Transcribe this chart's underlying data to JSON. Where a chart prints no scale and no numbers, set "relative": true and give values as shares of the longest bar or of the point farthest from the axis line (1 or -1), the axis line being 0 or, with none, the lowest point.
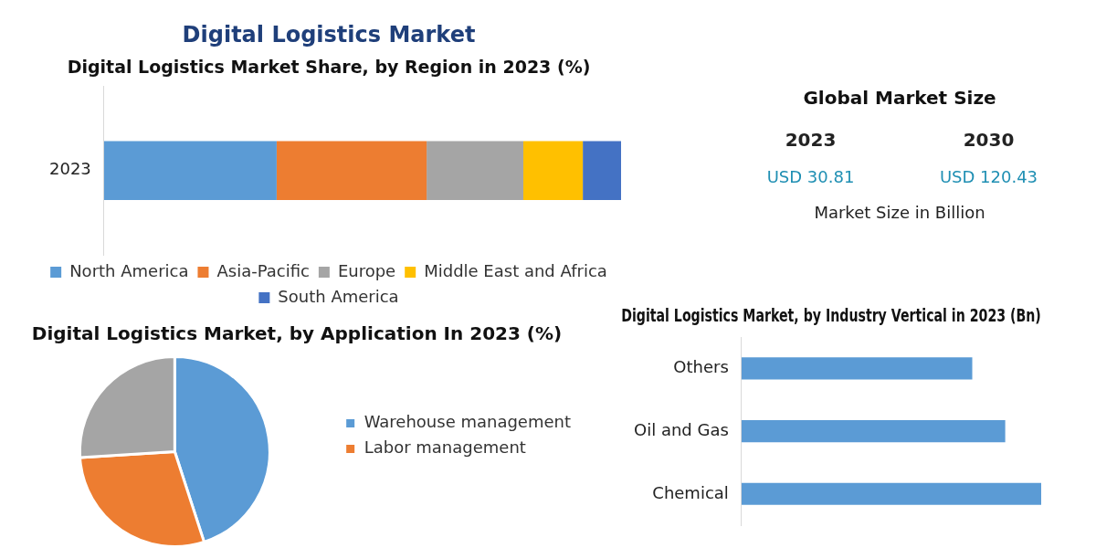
{
  "chart_data": [
    {
      "type": "bar",
      "title": "Digital Logistics Market",
      "subtitle": "Digital Logistics Market Share, by Region in 2023 (%)",
      "categories": [
        "2023"
      ],
      "orientation": "horizontal",
      "stacked": true,
      "relative": true,
      "legend": "bottom",
      "series": [
        {
          "name": "North America",
          "color": "#5b9bd5",
          "values": [
            0.334
          ]
        },
        {
          "name": "Asia-Pacific",
          "color": "#ed7d31",
          "values": [
            0.29
          ]
        },
        {
          "name": "Europe",
          "color": "#a5a5a5",
          "values": [
            0.187
          ]
        },
        {
          "name": "Middle East and Africa",
          "color": "#ffc000",
          "values": [
            0.115
          ]
        },
        {
          "name": "South America",
          "color": "#4472c4",
          "values": [
            0.074
          ]
        }
      ]
    },
    {
      "type": "other",
      "title": "Global Market Size",
      "annotations": [
        "2023",
        "2030",
        "USD 30.81",
        "USD 120.43",
        "Market Size in Billion"
      ]
    },
    {
      "type": "pie",
      "title": "Digital Logistics Market, by Application In 2023 (%)",
      "categories": [
        "Warehouse management",
        "Labor management",
        null
      ],
      "values": [
        45,
        29,
        26
      ],
      "colors": [
        "#5b9bd5",
        "#ed7d31",
        "#a5a5a5"
      ],
      "legend": "right"
    },
    {
      "type": "bar",
      "title": "Digital Logistics Market, by Industry Vertical in 2023 (Bn)",
      "orientation": "horizontal",
      "relative": true,
      "categories": [
        "Others",
        "Oil and Gas",
        "Chemical"
      ],
      "values": [
        0.77,
        0.88,
        1.0
      ],
      "color": "#5b9bd5"
    }
  ]
}
